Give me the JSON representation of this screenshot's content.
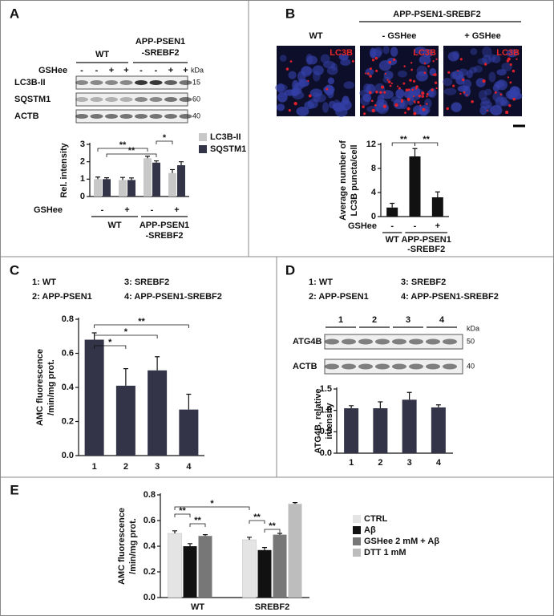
{
  "figure": {
    "A": {
      "letter": "A",
      "blot": {
        "groups": [
          [
            "WT"
          ],
          [
            "APP-PSEN1",
            "-SREBF2"
          ]
        ],
        "treatment": "GSHee",
        "signs": [
          "-",
          "-",
          "+",
          "+",
          "-",
          "-",
          "+",
          "+"
        ],
        "kda": "kDa",
        "rows": [
          {
            "name": "LC3B-II",
            "kda": "15"
          },
          {
            "name": "SQSTM1",
            "kda": "60"
          },
          {
            "name": "ACTB",
            "kda": "40"
          }
        ]
      }
    },
    "B": {
      "letter": "B",
      "group": "APP-PSEN1-SREBF2",
      "images": [
        {
          "title": "WT",
          "stain": "LC3B"
        },
        {
          "title": "- GSHee",
          "stain": "LC3B"
        },
        {
          "title": "+ GSHee",
          "stain": "LC3B"
        }
      ]
    },
    "C": {
      "letter": "C",
      "key": [
        "1: WT",
        "3: SREBF2",
        "2: APP-PSEN1",
        "4: APP-PSEN1-SREBF2"
      ]
    },
    "D": {
      "letter": "D",
      "key": [
        "1: WT",
        "3: SREBF2",
        "2: APP-PSEN1",
        "4: APP-PSEN1-SREBF2"
      ],
      "blot": {
        "lanes": [
          "1",
          "2",
          "3",
          "4"
        ],
        "kda": "kDa",
        "rows": [
          {
            "name": "ATG4B",
            "kda": "50"
          },
          {
            "name": "ACTB",
            "kda": "40"
          }
        ]
      }
    },
    "E": {
      "letter": "E"
    }
  },
  "chart_data": [
    {
      "type": "bar",
      "y_label": [
        "Rel. intensity"
      ],
      "categories": [
        "-",
        "+",
        "-",
        "+"
      ],
      "treatment": "GSHee",
      "groups": [
        [
          "WT"
        ],
        [
          "APP-PSEN1",
          "-SREBF2"
        ]
      ],
      "series": [
        {
          "name": "LC3B-II",
          "color": "#c8c8c8",
          "values": [
            1.0,
            0.95,
            2.2,
            1.35
          ],
          "errors": [
            0.12,
            0.15,
            0.12,
            0.2
          ]
        },
        {
          "name": "SQSTM1",
          "color": "#343448",
          "values": [
            1.0,
            0.95,
            1.95,
            1.8
          ],
          "errors": [
            0.08,
            0.12,
            0.1,
            0.2
          ]
        }
      ],
      "ylim": [
        0,
        3
      ],
      "yticks": [
        0,
        1,
        2,
        3
      ],
      "legend": "right",
      "annotations": [
        "**",
        "**",
        "*"
      ]
    },
    {
      "type": "bar",
      "y_label": [
        "Average number of",
        "LC3B puncta/cell"
      ],
      "categories": [
        "-",
        "-",
        "+"
      ],
      "treatment": "GSHee",
      "groups": [
        [
          "WT"
        ],
        [
          "APP-PSEN1",
          "-SREBF2"
        ]
      ],
      "values": [
        1.5,
        10,
        3.2
      ],
      "errors": [
        0.7,
        1.3,
        0.9
      ],
      "color": "#111111",
      "ylim": [
        0,
        12
      ],
      "yticks": [
        0,
        4,
        8,
        12
      ],
      "annotations": [
        "**",
        "**"
      ]
    },
    {
      "type": "bar",
      "y_label": [
        "AMC fluorescence",
        "/min/mg prot."
      ],
      "categories": [
        "1",
        "2",
        "3",
        "4"
      ],
      "values": [
        0.68,
        0.41,
        0.5,
        0.27
      ],
      "errors": [
        0.04,
        0.1,
        0.08,
        0.09
      ],
      "color": "#333447",
      "ylim": [
        0,
        0.8
      ],
      "yticks": [
        {
          "value": 0,
          "label": "0.0"
        },
        0.2,
        0.4,
        0.6,
        0.8
      ],
      "annotations": [
        "**",
        "*",
        "*"
      ]
    },
    {
      "type": "bar",
      "y_label": [
        "ATG4B, relative",
        "intensity"
      ],
      "categories": [
        "1",
        "2",
        "3",
        "4"
      ],
      "values": [
        1.05,
        1.05,
        1.25,
        1.07
      ],
      "errors": [
        0.06,
        0.15,
        0.17,
        0.06
      ],
      "color": "#333447",
      "ylim": [
        0,
        1.5
      ],
      "yticks": [
        {
          "value": 0,
          "label": "0.0"
        },
        0.5,
        {
          "value": 1,
          "label": "1.0"
        },
        1.5
      ]
    },
    {
      "type": "bar",
      "y_label": [
        "AMC fluorescence",
        "/min/mg prot."
      ],
      "categories": [
        "WT",
        "SREBF2"
      ],
      "series": [
        {
          "name": "CTRL",
          "color": "#e4e4e4",
          "values": [
            0.5,
            0.45
          ],
          "errors": [
            0.02,
            0.02
          ]
        },
        {
          "name": "Aβ",
          "color": "#111111",
          "values": [
            0.4,
            0.37
          ],
          "errors": [
            0.02,
            0.02
          ]
        },
        {
          "name": "GSHee 2 mM + Aβ",
          "color": "#777777",
          "values": [
            0.48,
            0.49
          ],
          "errors": [
            0.01,
            0.01
          ]
        },
        {
          "name": "DTT 1 mM",
          "color": "#bdbdbd",
          "values": [
            null,
            0.73
          ],
          "errors": [
            null,
            0.01
          ]
        }
      ],
      "ylim": [
        0,
        0.8
      ],
      "yticks": [
        {
          "value": 0,
          "label": "0.0"
        },
        0.2,
        0.4,
        0.6,
        0.8
      ],
      "legend": "right",
      "annotations": [
        "*",
        "**",
        "**",
        "**",
        "**"
      ]
    }
  ]
}
